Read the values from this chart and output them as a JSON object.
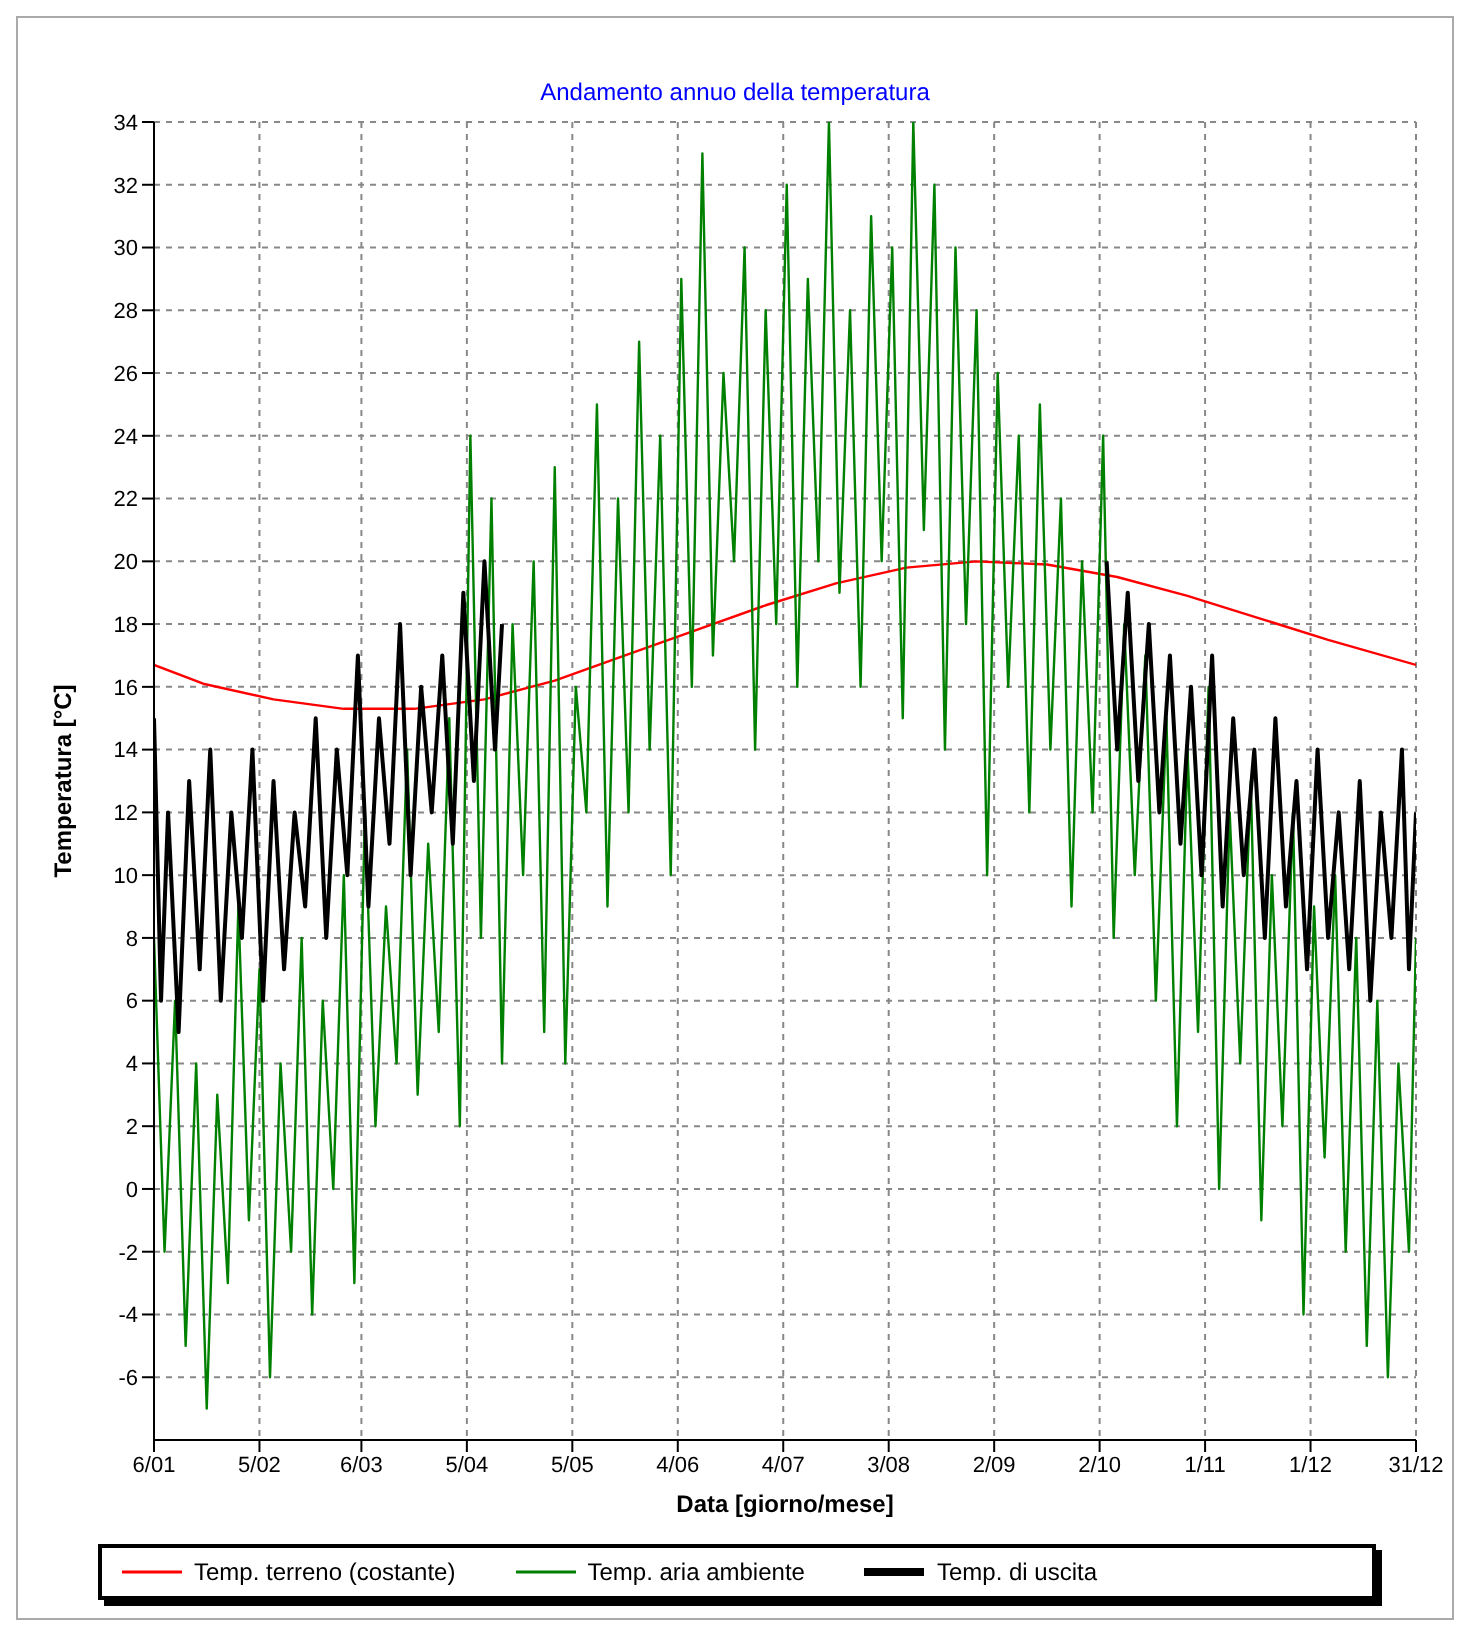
{
  "chart_data": {
    "type": "line",
    "title": "Andamento annuo della temperatura",
    "xlabel": "Data [giorno/mese]",
    "ylabel": "Temperatura [°C]",
    "xlim": [
      "--01-06",
      "--12-31"
    ],
    "xticks": [
      {
        "value": "--01-06",
        "label": "6/01"
      },
      {
        "value": "--02-05",
        "label": "5/02"
      },
      {
        "value": "--03-06",
        "label": "6/03"
      },
      {
        "value": "--04-05",
        "label": "5/04"
      },
      {
        "value": "--05-05",
        "label": "5/05"
      },
      {
        "value": "--06-04",
        "label": "4/06"
      },
      {
        "value": "--07-04",
        "label": "4/07"
      },
      {
        "value": "--08-03",
        "label": "3/08"
      },
      {
        "value": "--09-02",
        "label": "2/09"
      },
      {
        "value": "--10-02",
        "label": "2/10"
      },
      {
        "value": "--11-01",
        "label": "1/11"
      },
      {
        "value": "--12-01",
        "label": "1/12"
      },
      {
        "value": "--12-31",
        "label": "31/12"
      }
    ],
    "ylim": [
      -8,
      34
    ],
    "yticks": [
      -6,
      -4,
      -2,
      0,
      2,
      4,
      6,
      8,
      10,
      12,
      14,
      16,
      18,
      20,
      22,
      24,
      26,
      28,
      30,
      32,
      34
    ],
    "grid": true,
    "legend": "bottom",
    "marker": "none",
    "line_style": "solid",
    "series": [
      {
        "name": "Temp. terreno (costante)",
        "color": "#ff0000",
        "x": [
          "--01-06",
          "--01-20",
          "--02-09",
          "--03-01",
          "--03-21",
          "--04-10",
          "--04-30",
          "--05-20",
          "--06-09",
          "--06-29",
          "--07-19",
          "--08-08",
          "--08-28",
          "--09-17",
          "--10-07",
          "--10-27",
          "--11-16",
          "--12-06",
          "--12-31"
        ],
        "values": [
          16.7,
          16.1,
          15.6,
          15.3,
          15.3,
          15.6,
          16.2,
          17,
          17.8,
          18.6,
          19.3,
          19.8,
          20,
          19.9,
          19.5,
          18.9,
          18.2,
          17.5,
          16.7
        ]
      },
      {
        "name": "Temp. aria ambiente",
        "color": "#008000",
        "x": [
          "--01-06",
          "--01-09",
          "--01-12",
          "--01-15",
          "--01-18",
          "--01-21",
          "--01-24",
          "--01-27",
          "--01-30",
          "--02-02",
          "--02-05",
          "--02-08",
          "--02-11",
          "--02-14",
          "--02-17",
          "--02-20",
          "--02-23",
          "--02-26",
          "--03-01",
          "--03-04",
          "--03-07",
          "--03-10",
          "--03-13",
          "--03-16",
          "--03-19",
          "--03-22",
          "--03-25",
          "--03-28",
          "--03-31",
          "--04-03",
          "--04-06",
          "--04-09",
          "--04-12",
          "--04-15",
          "--04-18",
          "--04-21",
          "--04-24",
          "--04-27",
          "--04-30",
          "--05-03",
          "--05-06",
          "--05-09",
          "--05-12",
          "--05-15",
          "--05-18",
          "--05-21",
          "--05-24",
          "--05-27",
          "--05-30",
          "--06-02",
          "--06-05",
          "--06-08",
          "--06-11",
          "--06-14",
          "--06-17",
          "--06-20",
          "--06-23",
          "--06-26",
          "--06-29",
          "--07-02",
          "--07-05",
          "--07-08",
          "--07-11",
          "--07-14",
          "--07-17",
          "--07-20",
          "--07-23",
          "--07-26",
          "--07-29",
          "--08-01",
          "--08-04",
          "--08-07",
          "--08-10",
          "--08-13",
          "--08-16",
          "--08-19",
          "--08-22",
          "--08-25",
          "--08-28",
          "--08-31",
          "--09-03",
          "--09-06",
          "--09-09",
          "--09-12",
          "--09-15",
          "--09-18",
          "--09-21",
          "--09-24",
          "--09-27",
          "--09-30",
          "--10-03",
          "--10-06",
          "--10-09",
          "--10-12",
          "--10-15",
          "--10-18",
          "--10-21",
          "--10-24",
          "--10-27",
          "--10-30",
          "--11-02",
          "--11-05",
          "--11-08",
          "--11-11",
          "--11-14",
          "--11-17",
          "--11-20",
          "--11-23",
          "--11-26",
          "--11-29",
          "--12-02",
          "--12-05",
          "--12-08",
          "--12-11",
          "--12-14",
          "--12-17",
          "--12-20",
          "--12-23",
          "--12-26",
          "--12-29",
          "--12-31"
        ],
        "values": [
          8,
          -2,
          6,
          -5,
          4,
          -7,
          3,
          -3,
          9,
          -1,
          7,
          -6,
          4,
          -2,
          8,
          -4,
          6,
          0,
          10,
          -3,
          12,
          2,
          9,
          4,
          14,
          3,
          11,
          5,
          15,
          2,
          24,
          8,
          22,
          4,
          18,
          10,
          20,
          5,
          23,
          4,
          16,
          12,
          25,
          9,
          22,
          12,
          27,
          14,
          24,
          10,
          29,
          16,
          33,
          17,
          26,
          20,
          30,
          14,
          28,
          18,
          32,
          16,
          29,
          20,
          34,
          19,
          28,
          16,
          31,
          20,
          30,
          15,
          34,
          21,
          32,
          14,
          30,
          18,
          28,
          10,
          26,
          16,
          24,
          12,
          25,
          14,
          22,
          9,
          20,
          12,
          24,
          8,
          18,
          10,
          17,
          6,
          15,
          2,
          14,
          5,
          16,
          0,
          12,
          4,
          13,
          -1,
          10,
          2,
          12,
          -4,
          9,
          1,
          10,
          -2,
          8,
          -5,
          6,
          -6,
          4,
          -2,
          8
        ]
      },
      {
        "name": "Temp. di uscita",
        "color": "#000000",
        "x": [
          "--01-06",
          "--01-08",
          "--01-10",
          "--01-13",
          "--01-16",
          "--01-19",
          "--01-22",
          "--01-25",
          "--01-28",
          "--01-31",
          "--02-03",
          "--02-06",
          "--02-09",
          "--02-12",
          "--02-15",
          "--02-18",
          "--02-21",
          "--02-24",
          "--02-27",
          "--03-02",
          "--03-05",
          "--03-08",
          "--03-11",
          "--03-14",
          "--03-17",
          "--03-20",
          "--03-23",
          "--03-26",
          "--03-29",
          "--04-01",
          "--04-04",
          "--04-07",
          "--04-10",
          "--04-13",
          "--04-15",
          "--07-09",
          "--10-04",
          "--10-07",
          "--10-10",
          "--10-13",
          "--10-16",
          "--10-19",
          "--10-22",
          "--10-25",
          "--10-28",
          "--10-31",
          "--11-03",
          "--11-06",
          "--11-09",
          "--11-12",
          "--11-15",
          "--11-18",
          "--11-21",
          "--11-24",
          "--11-27",
          "--11-30",
          "--12-03",
          "--12-06",
          "--12-09",
          "--12-12",
          "--12-15",
          "--12-18",
          "--12-21",
          "--12-24",
          "--12-27",
          "--12-29",
          "--12-31"
        ],
        "values": [
          15,
          6,
          12,
          5,
          13,
          7,
          14,
          6,
          12,
          8,
          14,
          6,
          13,
          7,
          12,
          9,
          15,
          8,
          14,
          10,
          17,
          9,
          15,
          11,
          18,
          10,
          16,
          12,
          17,
          11,
          19,
          13,
          20,
          14,
          18,
          null,
          20,
          14,
          19,
          13,
          18,
          12,
          17,
          11,
          16,
          10,
          17,
          9,
          15,
          10,
          14,
          8,
          15,
          9,
          13,
          7,
          14,
          8,
          12,
          7,
          13,
          6,
          12,
          8,
          14,
          7,
          12
        ]
      }
    ]
  }
}
